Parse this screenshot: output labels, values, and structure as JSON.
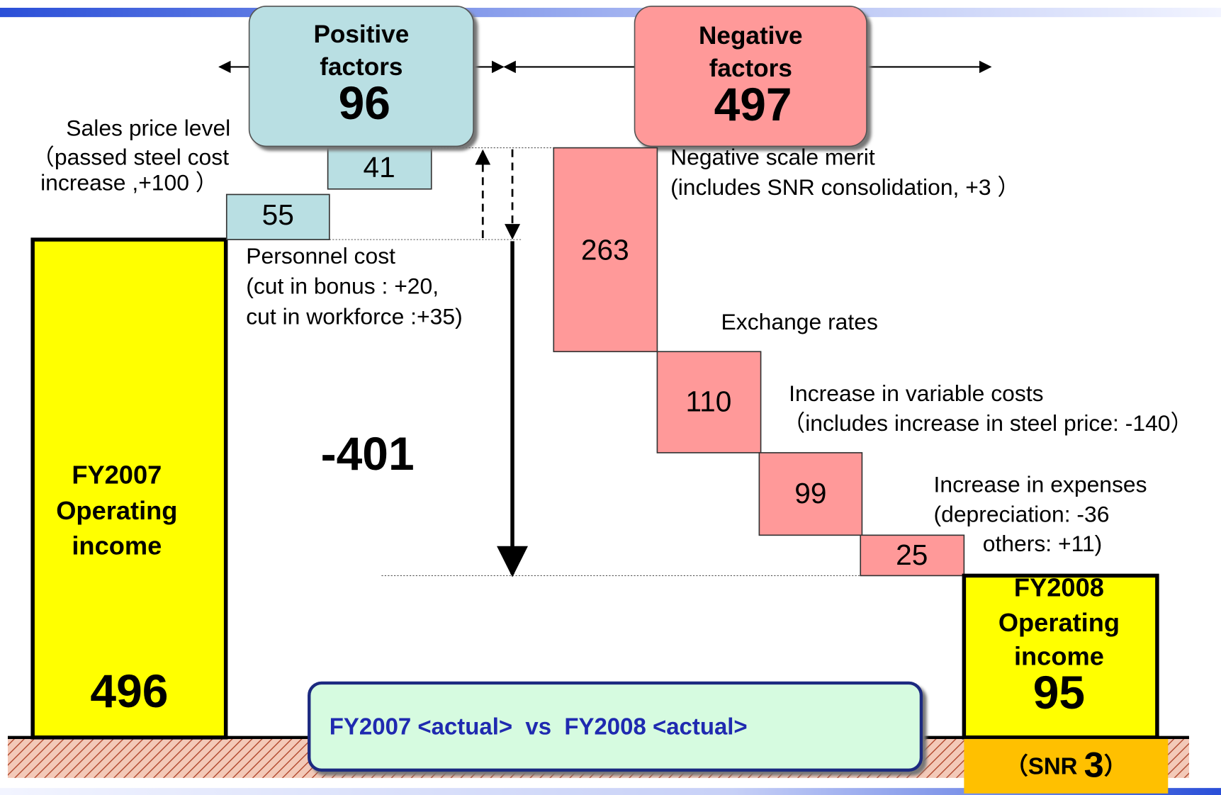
{
  "chart_data": {
    "type": "waterfall",
    "start": {
      "lines": [
        "FY2007",
        "Operating",
        "income"
      ],
      "value": 496
    },
    "positive": {
      "title": [
        "Positive",
        "factors"
      ],
      "value": 96,
      "steps": [
        {
          "value": 55,
          "label": [
            "Personnel cost",
            "(cut in bonus : +20,",
            "cut in workforce :+35)"
          ]
        },
        {
          "value": 41,
          "label": [
            "Sales price level",
            "（passed steel cost",
            "increase ,+100 ）"
          ]
        }
      ]
    },
    "negative": {
      "title": [
        "Negative",
        "factors"
      ],
      "value": 497,
      "steps": [
        {
          "value": 263,
          "label": [
            "Negative scale merit",
            "(includes SNR  consolidation, +3 ）"
          ]
        },
        {
          "value": 110,
          "label": [
            "Exchange rates"
          ]
        },
        {
          "value": 99,
          "label": [
            "Increase in variable costs",
            "（includes increase in steel price: -140）"
          ]
        },
        {
          "value": 25,
          "label": [
            "Increase in expenses",
            "(depreciation: -36",
            "others: +11)"
          ]
        }
      ]
    },
    "net_change": -401,
    "end": {
      "lines": [
        "FY2008",
        "Operating",
        "income"
      ],
      "value": 95,
      "snr_prefix": "（SNR",
      "snr_value": 3,
      "snr_suffix": "）"
    },
    "footer": "FY2007 <actual>  vs  FY2008 <actual>"
  }
}
